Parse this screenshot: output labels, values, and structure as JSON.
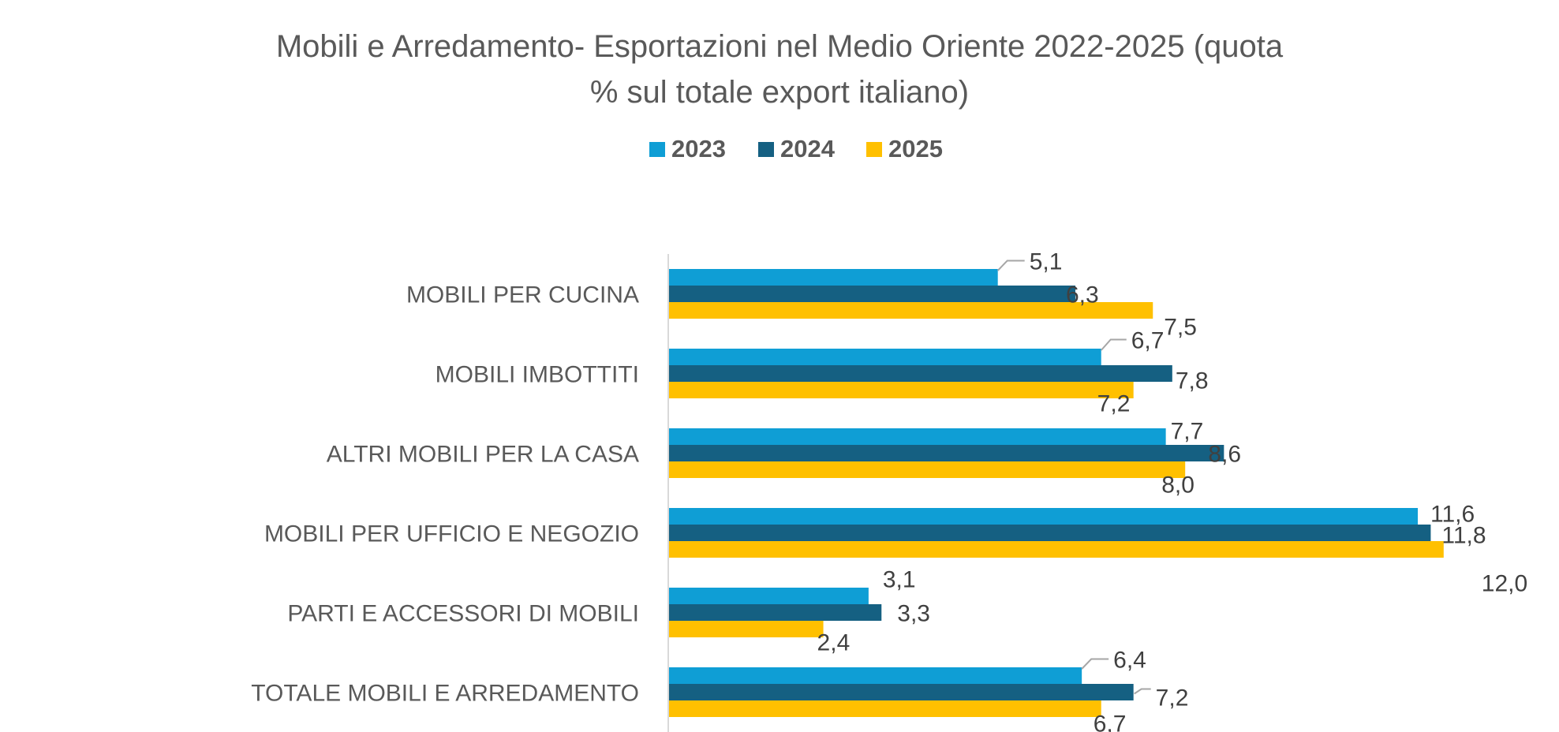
{
  "chart_data": {
    "type": "bar",
    "orientation": "horizontal",
    "title": "Mobili e Arredamento- Esportazioni nel Medio Oriente 2022-2025 (quota % sul totale export italiano)",
    "title_lines": [
      "Mobili e Arredamento- Esportazioni nel Medio Oriente 2022-2025 (quota",
      "% sul totale export italiano)"
    ],
    "xlabel": "",
    "ylabel": "",
    "xlim": [
      0,
      12.5
    ],
    "grid": false,
    "legend_position": "top",
    "categories": [
      "MOBILI PER CUCINA",
      "MOBILI IMBOTTITI",
      "ALTRI MOBILI PER LA CASA",
      "MOBILI PER UFFICIO E NEGOZIO",
      "PARTI E ACCESSORI DI MOBILI",
      "TOTALE MOBILI E ARREDAMENTO"
    ],
    "series": [
      {
        "name": "2023",
        "color": "#0F9ED5",
        "values": [
          5.1,
          6.7,
          7.7,
          11.6,
          3.1,
          6.4
        ],
        "labels": [
          "5,1",
          "6,7",
          "7,7",
          "11,6",
          "3,1",
          "6,4"
        ]
      },
      {
        "name": "2024",
        "color": "#156082",
        "values": [
          6.3,
          7.8,
          8.6,
          11.8,
          3.3,
          7.2
        ],
        "labels": [
          "6,3",
          "7,8",
          "8,6",
          "11,8",
          "3,3",
          "7,2"
        ]
      },
      {
        "name": "2025",
        "color": "#FFC000",
        "values": [
          7.5,
          7.2,
          8.0,
          12.0,
          2.4,
          6.7
        ],
        "labels": [
          "7,5",
          "7,2",
          "8,0",
          "12,0",
          "2,4",
          "6,7"
        ]
      }
    ],
    "decimal_separator": ",",
    "leader_line_color": "#A6A6A6",
    "axis_line_color": "#D9D9D9"
  }
}
